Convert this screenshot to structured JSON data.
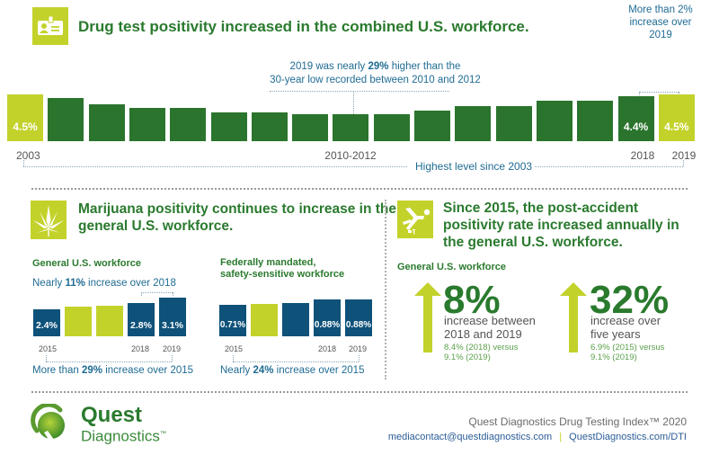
{
  "section1": {
    "title": "Drug test positivity increased in the combined U.S. workforce.",
    "icon": "id-badge-icon",
    "annotation_low_prefix": "2019 was nearly ",
    "annotation_low_bold": "29%",
    "annotation_low_suffix": " higher than the",
    "annotation_low_line2": "30-year low recorded between 2010 and 2012",
    "annotation_high_line1": "More than 2%",
    "annotation_high_line2": "increase over",
    "annotation_high_line3": "2019",
    "bottom_note": "Highest level since 2003"
  },
  "section2": {
    "title_line1": "Marijuana positivity continues to increase in the",
    "title_line2": "general U.S. workforce.",
    "icon": "cannabis-leaf-icon",
    "general": {
      "heading": "General U.S. workforce",
      "top_note_prefix": "Nearly ",
      "top_note_bold": "11%",
      "top_note_suffix": " increase over 2018",
      "bottom_note_prefix": "More than ",
      "bottom_note_bold": "29%",
      "bottom_note_suffix": " increase over 2015"
    },
    "federal": {
      "heading_line1": "Federally mandated,",
      "heading_line2": "safety-sensitive workforce",
      "bottom_note_prefix": "Nearly ",
      "bottom_note_bold": "24%",
      "bottom_note_suffix": " increase over 2015"
    }
  },
  "section3": {
    "title_line1": "Since 2015, the post-accident",
    "title_line2": "positivity rate increased annually in",
    "title_line3": "the general U.S. workforce.",
    "icon": "falling-person-icon",
    "heading": "General U.S. workforce",
    "stat1": {
      "value": "8%",
      "desc_line1": "increase between",
      "desc_line2": "2018 and 2019",
      "fine_line1": "8.4% (2018) versus",
      "fine_line2": "9.1% (2019)"
    },
    "stat2": {
      "value": "32%",
      "desc_line1": "increase over",
      "desc_line2": "five years",
      "fine_line1": "6.9% (2015) versus",
      "fine_line2": "9.1% (2019)"
    }
  },
  "footer": {
    "logo_word1": "Quest",
    "logo_word2": "Diagnostics",
    "logo_tm": "™",
    "index_title": "Quest Diagnostics Drug Testing Index™ 2020",
    "email": "mediacontact@questdiagnostics.com",
    "separator": "|",
    "website": "QuestDiagnostics.com/DTI"
  },
  "colors": {
    "dark_green": "#2b742d",
    "lime": "#c3d22b",
    "navy": "#0e5179",
    "title_green": "#2a7a2e",
    "note_blue": "#1f6b93"
  },
  "chart_data": [
    {
      "type": "bar",
      "title": "Drug test positivity in the combined U.S. workforce",
      "categories": [
        "2003",
        "2004",
        "2005",
        "2006",
        "2007",
        "2008",
        "2009",
        "2010",
        "2011",
        "2012",
        "2013",
        "2014",
        "2015",
        "2016",
        "2017",
        "2018",
        "2019"
      ],
      "values": [
        4.5,
        4.3,
        4.0,
        3.8,
        3.8,
        3.6,
        3.6,
        3.5,
        3.5,
        3.5,
        3.7,
        3.9,
        3.9,
        4.2,
        4.2,
        4.4,
        4.5
      ],
      "value_labels": {
        "2003": "4.5%",
        "2018": "4.4%",
        "2019": "4.5%"
      },
      "tick_labels": [
        "2003",
        "2010-2012",
        "2018",
        "2019"
      ],
      "highlight": [
        "2003",
        "2019"
      ],
      "ylabel": "",
      "xlabel": "",
      "unit": "%"
    },
    {
      "type": "bar",
      "title": "Marijuana positivity — General U.S. workforce",
      "categories": [
        "2015",
        "2016",
        "2017",
        "2018",
        "2019"
      ],
      "values": [
        2.4,
        2.55,
        2.6,
        2.8,
        3.1
      ],
      "value_labels": {
        "2015": "2.4%",
        "2018": "2.8%",
        "2019": "3.1%"
      },
      "tick_labels": [
        "2015",
        "2018",
        "2019"
      ],
      "highlight": [
        "2016",
        "2017"
      ],
      "unit": "%"
    },
    {
      "type": "bar",
      "title": "Marijuana positivity — Federally mandated, safety-sensitive workforce",
      "categories": [
        "2015",
        "2016",
        "2017",
        "2018",
        "2019"
      ],
      "values": [
        0.71,
        0.73,
        0.76,
        0.88,
        0.88
      ],
      "value_labels": {
        "2015": "0.71%",
        "2018": "0.88%",
        "2019": "0.88%"
      },
      "tick_labels": [
        "2015",
        "2018",
        "2019"
      ],
      "highlight": [
        "2016"
      ],
      "unit": "%"
    }
  ]
}
